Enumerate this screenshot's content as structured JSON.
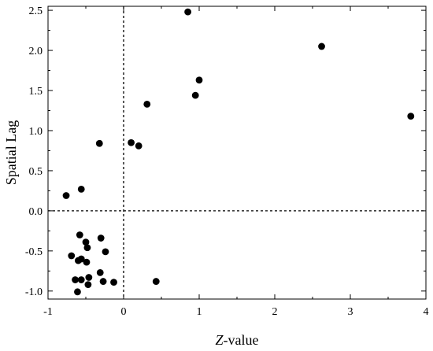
{
  "chart_data": {
    "type": "scatter",
    "xlabel_italic": "Z",
    "xlabel_rest": "-value",
    "ylabel": "Spatial Lag",
    "xlim": [
      -1,
      4
    ],
    "ylim": [
      -1.1,
      2.55
    ],
    "xticks": [
      -1,
      0,
      1,
      2,
      3,
      4
    ],
    "yticks": [
      -1.0,
      -0.5,
      0.0,
      0.5,
      1.0,
      1.5,
      2.0,
      2.5
    ],
    "xtick_labels": [
      "-1",
      "0",
      "1",
      "2",
      "3",
      "4"
    ],
    "ytick_labels": [
      "-1.0",
      "-0.5",
      "0.0",
      "0.5",
      "1.0",
      "1.5",
      "2.0",
      "2.5"
    ],
    "reference_lines": {
      "x": 0,
      "y": 0,
      "style": "dashed"
    },
    "grid": false,
    "marker_color": "#000000",
    "points": [
      {
        "x": 0.85,
        "y": 2.48
      },
      {
        "x": 2.62,
        "y": 2.05
      },
      {
        "x": 1.0,
        "y": 1.63
      },
      {
        "x": 0.95,
        "y": 1.44
      },
      {
        "x": 0.31,
        "y": 1.33
      },
      {
        "x": 3.8,
        "y": 1.18
      },
      {
        "x": -0.32,
        "y": 0.84
      },
      {
        "x": 0.1,
        "y": 0.85
      },
      {
        "x": 0.2,
        "y": 0.81
      },
      {
        "x": -0.56,
        "y": 0.27
      },
      {
        "x": -0.76,
        "y": 0.19
      },
      {
        "x": -0.58,
        "y": -0.3
      },
      {
        "x": -0.3,
        "y": -0.34
      },
      {
        "x": -0.5,
        "y": -0.39
      },
      {
        "x": -0.48,
        "y": -0.46
      },
      {
        "x": -0.24,
        "y": -0.51
      },
      {
        "x": -0.69,
        "y": -0.56
      },
      {
        "x": -0.6,
        "y": -0.62
      },
      {
        "x": -0.56,
        "y": -0.6
      },
      {
        "x": -0.49,
        "y": -0.64
      },
      {
        "x": -0.31,
        "y": -0.77
      },
      {
        "x": -0.46,
        "y": -0.83
      },
      {
        "x": -0.64,
        "y": -0.86
      },
      {
        "x": -0.56,
        "y": -0.86
      },
      {
        "x": -0.27,
        "y": -0.88
      },
      {
        "x": -0.13,
        "y": -0.89
      },
      {
        "x": 0.43,
        "y": -0.88
      },
      {
        "x": -0.47,
        "y": -0.92
      },
      {
        "x": -0.61,
        "y": -1.01
      }
    ]
  }
}
